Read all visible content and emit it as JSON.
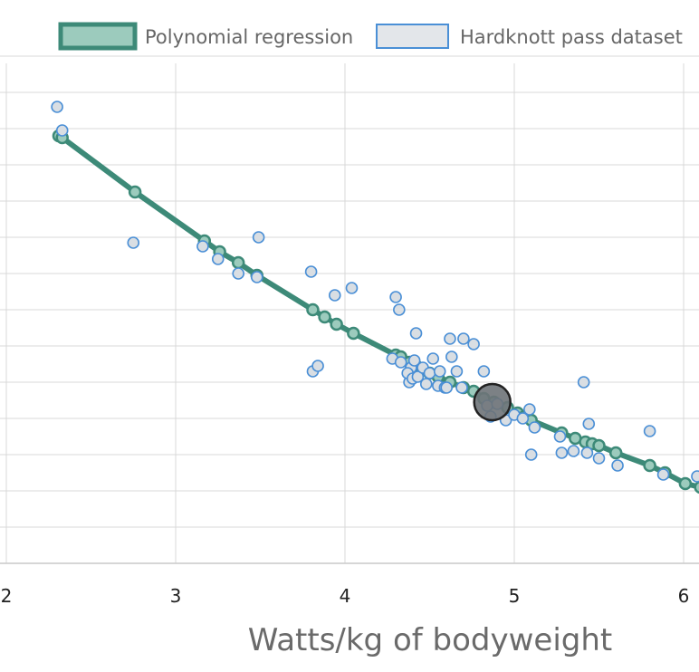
{
  "chart_data": {
    "type": "scatter",
    "xlabel": "Watts/kg of bodyweight",
    "ylabel": "",
    "xlim": [
      2.0,
      6.1
    ],
    "ylim": [
      0,
      14
    ],
    "x_ticks": [
      "2",
      "3",
      "4",
      "5",
      "6"
    ],
    "x_tick_values": [
      2,
      3,
      4,
      5,
      6
    ],
    "y_grid_values": [
      1,
      2,
      3,
      4,
      5,
      6,
      7,
      8,
      9,
      10,
      11,
      12,
      13,
      14
    ],
    "grid": true,
    "legend_position": "top-right",
    "series": [
      {
        "name": "Polynomial regression",
        "kind": "line",
        "color": "#3d8a78",
        "fill": "#9ccbbd",
        "x": [
          2.31,
          2.33,
          2.76,
          3.17,
          3.26,
          3.37,
          3.48,
          3.81,
          3.88,
          3.95,
          4.05,
          4.3,
          4.33,
          4.38,
          4.42,
          4.46,
          4.5,
          4.55,
          4.62,
          4.7,
          4.76,
          4.82,
          4.88,
          4.96,
          5.02,
          5.06,
          5.1,
          5.28,
          5.36,
          5.42,
          5.46,
          5.5,
          5.6,
          5.8,
          5.89,
          6.01,
          6.1
        ],
        "y": [
          11.8,
          11.75,
          10.25,
          8.9,
          8.6,
          8.3,
          7.95,
          7.0,
          6.8,
          6.6,
          6.35,
          5.75,
          5.7,
          5.55,
          5.45,
          5.35,
          5.25,
          5.15,
          5.0,
          4.85,
          4.75,
          4.55,
          4.45,
          4.3,
          4.15,
          4.05,
          3.95,
          3.6,
          3.45,
          3.35,
          3.3,
          3.25,
          3.05,
          2.7,
          2.5,
          2.2,
          2.1
        ]
      },
      {
        "name": "Hardknott pass dataset",
        "kind": "scatter",
        "color": "#4a8fd6",
        "fill": "#d9dee3",
        "x": [
          2.3,
          2.33,
          2.75,
          3.16,
          3.25,
          3.37,
          3.48,
          3.49,
          3.8,
          3.81,
          3.84,
          3.94,
          4.04,
          4.3,
          4.32,
          4.38,
          4.39,
          4.41,
          4.42,
          4.28,
          4.33,
          4.37,
          4.4,
          4.43,
          4.46,
          4.48,
          4.5,
          4.52,
          4.55,
          4.56,
          4.59,
          4.6,
          4.62,
          4.63,
          4.66,
          4.69,
          4.7,
          4.76,
          4.82,
          4.84,
          4.86,
          4.9,
          4.95,
          5.0,
          5.05,
          5.1,
          5.12,
          5.09,
          5.27,
          5.28,
          5.35,
          5.41,
          5.43,
          5.44,
          5.5,
          5.61,
          5.8,
          5.88,
          6.08
        ],
        "y": [
          12.6,
          11.95,
          8.85,
          8.75,
          8.4,
          8.0,
          7.9,
          9.0,
          8.05,
          5.3,
          5.45,
          7.4,
          7.6,
          7.35,
          7.0,
          5.0,
          5.4,
          5.6,
          6.35,
          5.65,
          5.55,
          5.25,
          5.1,
          5.15,
          5.4,
          4.95,
          5.25,
          5.65,
          4.9,
          5.3,
          4.85,
          4.85,
          6.2,
          5.7,
          5.3,
          4.85,
          6.2,
          6.05,
          5.3,
          4.35,
          4.05,
          4.4,
          3.95,
          4.1,
          4.0,
          3.0,
          3.75,
          4.25,
          3.5,
          3.05,
          3.1,
          5.0,
          3.05,
          3.85,
          2.9,
          2.7,
          3.65,
          2.45,
          2.4
        ]
      },
      {
        "name": "",
        "kind": "highlight",
        "color": "#222222",
        "fill": "#6e7378",
        "x": [
          4.87
        ],
        "y": [
          4.45
        ]
      }
    ]
  }
}
